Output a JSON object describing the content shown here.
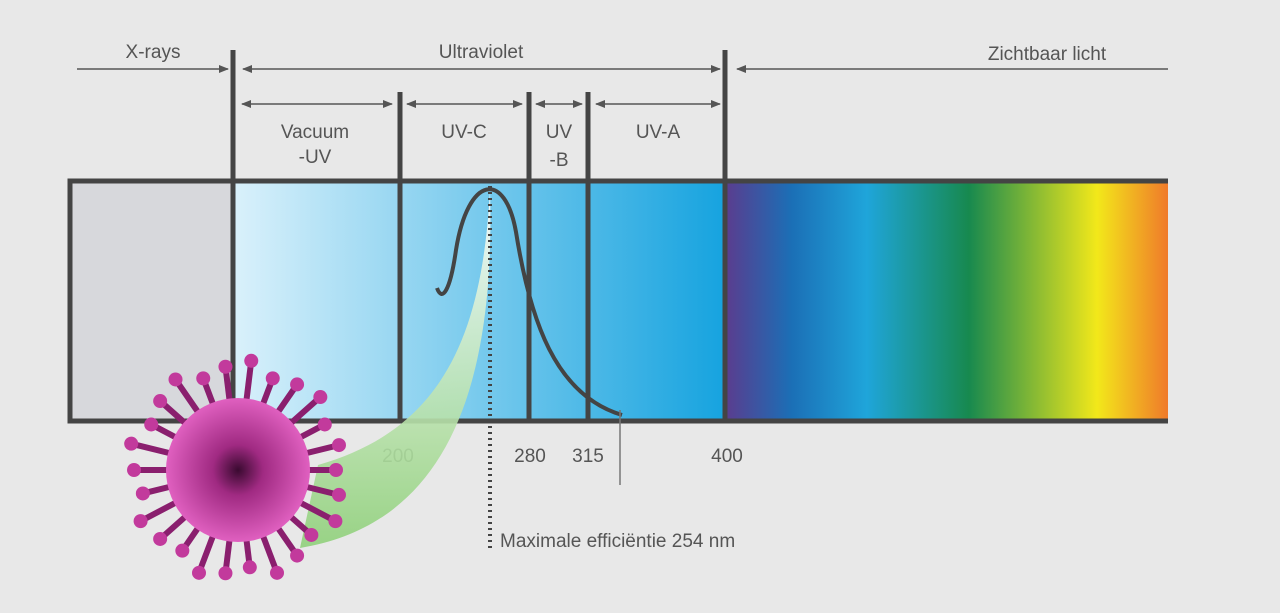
{
  "regions": {
    "x_rays": "X-rays",
    "ultraviolet": "Ultraviolet",
    "visible": "Zichtbaar licht"
  },
  "bands": [
    {
      "lines": [
        "Vacuum",
        "-UV"
      ]
    },
    {
      "lines": [
        "UV-C"
      ]
    },
    {
      "lines": [
        "UV",
        "-B"
      ]
    },
    {
      "lines": [
        "UV-A"
      ]
    }
  ],
  "wavelengths": [
    200,
    280,
    315,
    400
  ],
  "annotation": "Maximale efficiëntie 254 nm"
}
